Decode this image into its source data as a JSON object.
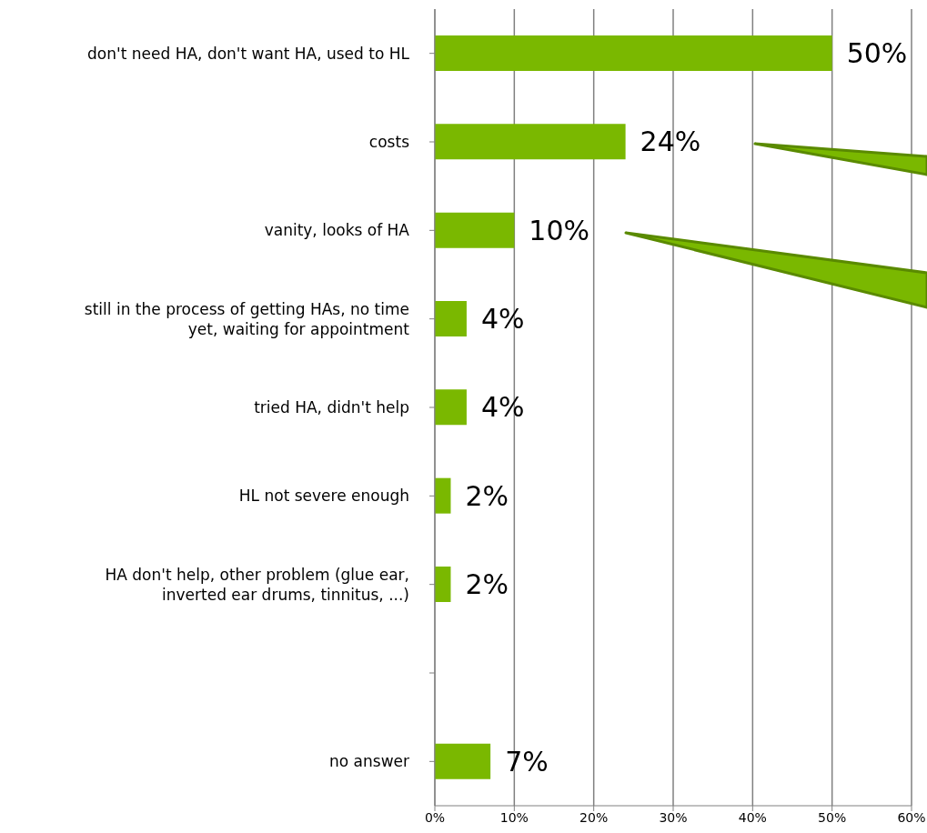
{
  "chart_data": {
    "type": "bar",
    "orientation": "horizontal",
    "categories": [
      "don't need HA, don't want HA, used to HL",
      "costs",
      "vanity, looks of HA",
      "still in the process of getting HAs, no time yet, waiting for appointment",
      "tried HA, didn't help",
      "HL not severe enough",
      "HA don't help, other problem (glue ear, inverted ear drums, tinnitus, ...)",
      null,
      "no answer"
    ],
    "values": [
      50,
      24,
      10,
      4,
      4,
      2,
      2,
      null,
      7
    ],
    "value_labels": [
      "50%",
      "24%",
      "10%",
      "4%",
      "4%",
      "2%",
      "2%",
      null,
      "7%"
    ],
    "color": "#7ab800",
    "xlim": [
      0,
      60
    ],
    "xticks": [
      {
        "value": 0,
        "label": "0%"
      },
      {
        "value": 10,
        "label": "10%"
      },
      {
        "value": 20,
        "label": "20%"
      },
      {
        "value": 30,
        "label": "30%"
      },
      {
        "value": 40,
        "label": "40%"
      },
      {
        "value": 50,
        "label": "50%"
      },
      {
        "value": 60,
        "label": "60%"
      }
    ],
    "grid": "x",
    "legend": false
  }
}
